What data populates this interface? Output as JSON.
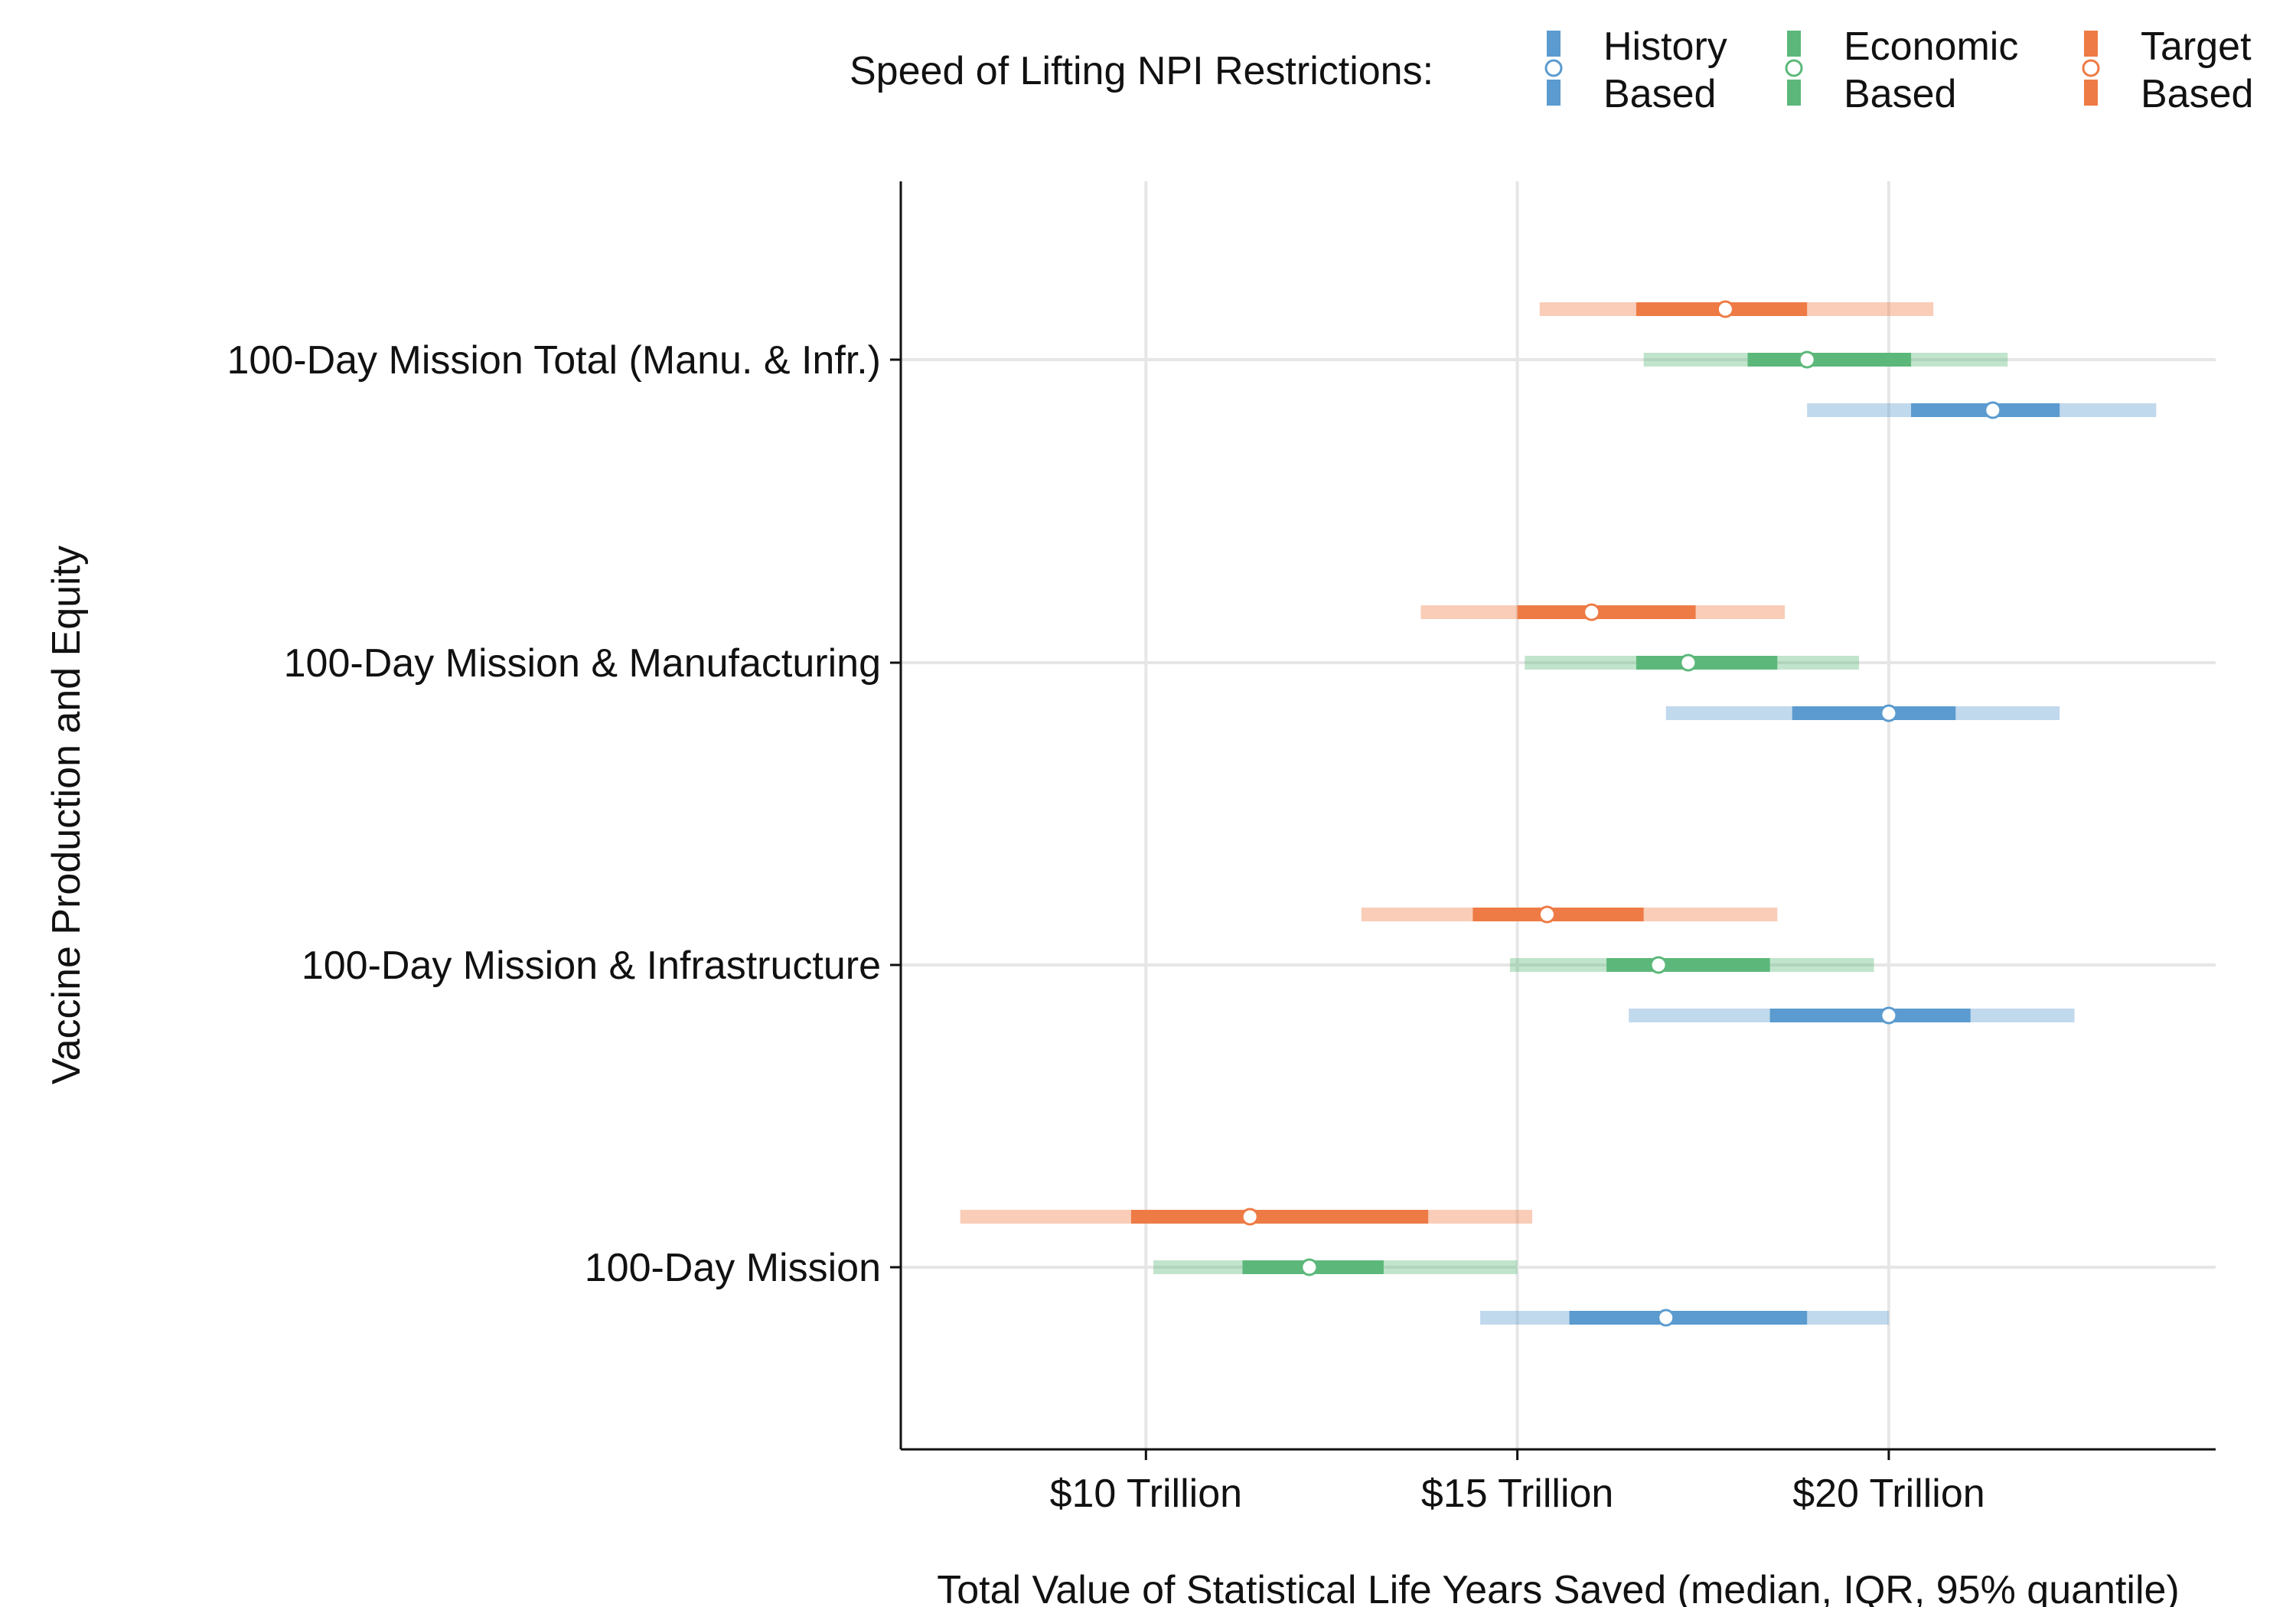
{
  "chart_data": {
    "type": "interval",
    "xlabel": "Total Value of Statistical Life Years Saved (median, IQR, 95% quantile)",
    "ylabel": "Vaccine Production and Equity",
    "xlim": [
      6.7,
      24.4
    ],
    "x_ticks": [
      {
        "value": 10,
        "label": "$10 Trillion"
      },
      {
        "value": 15,
        "label": "$15 Trillion"
      },
      {
        "value": 20,
        "label": "$20 Trillion"
      }
    ],
    "legend": {
      "title": "Speed of Lifting NPI Restrictions:",
      "position": "top",
      "entries": [
        {
          "label_line1": "History",
          "label_line2": "Based",
          "color": "#5b9bcf"
        },
        {
          "label_line1": "Economic",
          "label_line2": "Based",
          "color": "#5cb87a"
        },
        {
          "label_line1": "Target",
          "label_line2": "Based",
          "color": "#ee7b45"
        }
      ]
    },
    "categories": [
      "100-Day Mission Total (Manu. & Infr.)",
      "100-Day Mission & Manufacturing",
      "100-Day Mission & Infrastructure",
      "100-Day Mission"
    ],
    "series": [
      {
        "name": "Target Based",
        "color": "#ee7b45",
        "values": [
          {
            "median": 17.8,
            "q25": 16.6,
            "q75": 18.9,
            "q025": 15.3,
            "q975": 20.6
          },
          {
            "median": 16.0,
            "q25": 15.0,
            "q75": 17.4,
            "q025": 13.7,
            "q975": 18.6
          },
          {
            "median": 15.4,
            "q25": 14.4,
            "q75": 16.7,
            "q025": 12.9,
            "q975": 18.5
          },
          {
            "median": 11.4,
            "q25": 9.8,
            "q75": 13.8,
            "q025": 7.5,
            "q975": 15.2
          }
        ]
      },
      {
        "name": "Economic Based",
        "color": "#5cb87a",
        "values": [
          {
            "median": 18.9,
            "q25": 18.1,
            "q75": 20.3,
            "q025": 16.7,
            "q975": 21.6
          },
          {
            "median": 17.3,
            "q25": 16.6,
            "q75": 18.5,
            "q025": 15.1,
            "q975": 19.6
          },
          {
            "median": 16.9,
            "q25": 16.2,
            "q75": 18.4,
            "q025": 14.9,
            "q975": 19.8
          },
          {
            "median": 12.2,
            "q25": 11.3,
            "q75": 13.2,
            "q025": 10.1,
            "q975": 15.0
          }
        ]
      },
      {
        "name": "History Based",
        "color": "#5b9bcf",
        "values": [
          {
            "median": 21.4,
            "q25": 20.3,
            "q75": 22.3,
            "q025": 18.9,
            "q975": 23.6
          },
          {
            "median": 20.0,
            "q25": 18.7,
            "q75": 20.9,
            "q025": 17.0,
            "q975": 22.3
          },
          {
            "median": 20.0,
            "q25": 18.4,
            "q75": 21.1,
            "q025": 16.5,
            "q975": 22.5
          },
          {
            "median": 17.0,
            "q25": 15.7,
            "q75": 18.9,
            "q025": 14.5,
            "q975": 20.0
          }
        ]
      }
    ]
  }
}
